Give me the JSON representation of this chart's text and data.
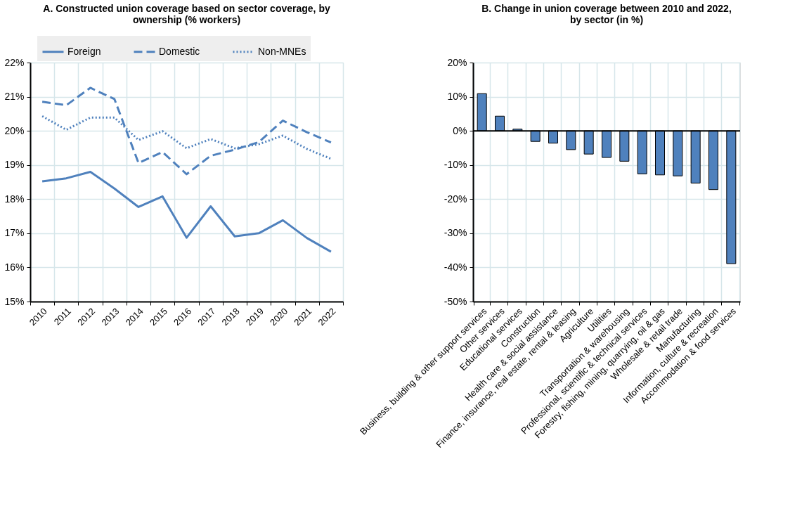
{
  "chart_data": [
    {
      "type": "line",
      "title": "A. Constructed union coverage based on sector coverage, by ownership (% workers)",
      "categories": [
        "2010",
        "2011",
        "2012",
        "2013",
        "2014",
        "2015",
        "2016",
        "2017",
        "2018",
        "2019",
        "2020",
        "2021",
        "2022"
      ],
      "series": [
        {
          "name": "Foreign",
          "color": "#4f81bd",
          "line_style": "solid",
          "values": [
            18.52,
            18.61,
            18.8,
            18.31,
            17.77,
            18.08,
            16.87,
            17.79,
            16.91,
            17.0,
            17.38,
            16.86,
            16.46
          ]
        },
        {
          "name": "Domestic",
          "color": "#4f81bd",
          "line_style": "dashed",
          "values": [
            20.85,
            20.75,
            21.26,
            20.93,
            19.06,
            19.38,
            18.73,
            19.27,
            19.45,
            19.67,
            20.3,
            19.96,
            19.66
          ]
        },
        {
          "name": "Non-MNEs",
          "color": "#4f81bd",
          "line_style": "dotted",
          "values": [
            20.43,
            20.03,
            20.39,
            20.39,
            19.73,
            19.99,
            19.49,
            19.76,
            19.49,
            19.61,
            19.86,
            19.47,
            19.18
          ]
        }
      ],
      "ylim": [
        15,
        22
      ],
      "yticks": [
        {
          "value": 15,
          "label": "15%"
        },
        {
          "value": 16,
          "label": "16%"
        },
        {
          "value": 17,
          "label": "17%"
        },
        {
          "value": 18,
          "label": "18%"
        },
        {
          "value": 19,
          "label": "19%"
        },
        {
          "value": 20,
          "label": "20%"
        },
        {
          "value": 21,
          "label": "21%"
        },
        {
          "value": 22,
          "label": "22%"
        }
      ],
      "grid": true,
      "legend": "top",
      "marker": "none"
    },
    {
      "type": "bar",
      "title": "B. Change in union coverage between 2010 and 2022, by sector (in %)",
      "categories": [
        "Business, building & other support services",
        "Other services",
        "Educational services",
        "Construction",
        "Health care & social assistance",
        "Finance, insurance, real estate, rental & leasing",
        "Agriculture",
        "Utilities",
        "Transportation & warehousing",
        "Professional, scientific & technical services",
        "Forestry, fishing, mining, quarrying, oil & gas",
        "Wholesale & retail trade",
        "Manufacturing",
        "Information, culture & recreation",
        "Accommodation & food services"
      ],
      "values": [
        10.9,
        4.3,
        0.5,
        -3.1,
        -3.6,
        -5.5,
        -6.8,
        -7.8,
        -8.9,
        -12.6,
        -12.9,
        -13.2,
        -15.3,
        -17.2,
        -38.9
      ],
      "color": "#4f81bd",
      "ylim": [
        -50,
        20
      ],
      "yticks": [
        {
          "value": -50,
          "label": "-50%"
        },
        {
          "value": -40,
          "label": "-40%"
        },
        {
          "value": -30,
          "label": "-30%"
        },
        {
          "value": -20,
          "label": "-20%"
        },
        {
          "value": -10,
          "label": "-10%"
        },
        {
          "value": 0,
          "label": "0%"
        },
        {
          "value": 10,
          "label": "10%"
        },
        {
          "value": 20,
          "label": "20%"
        }
      ],
      "grid": true
    }
  ]
}
